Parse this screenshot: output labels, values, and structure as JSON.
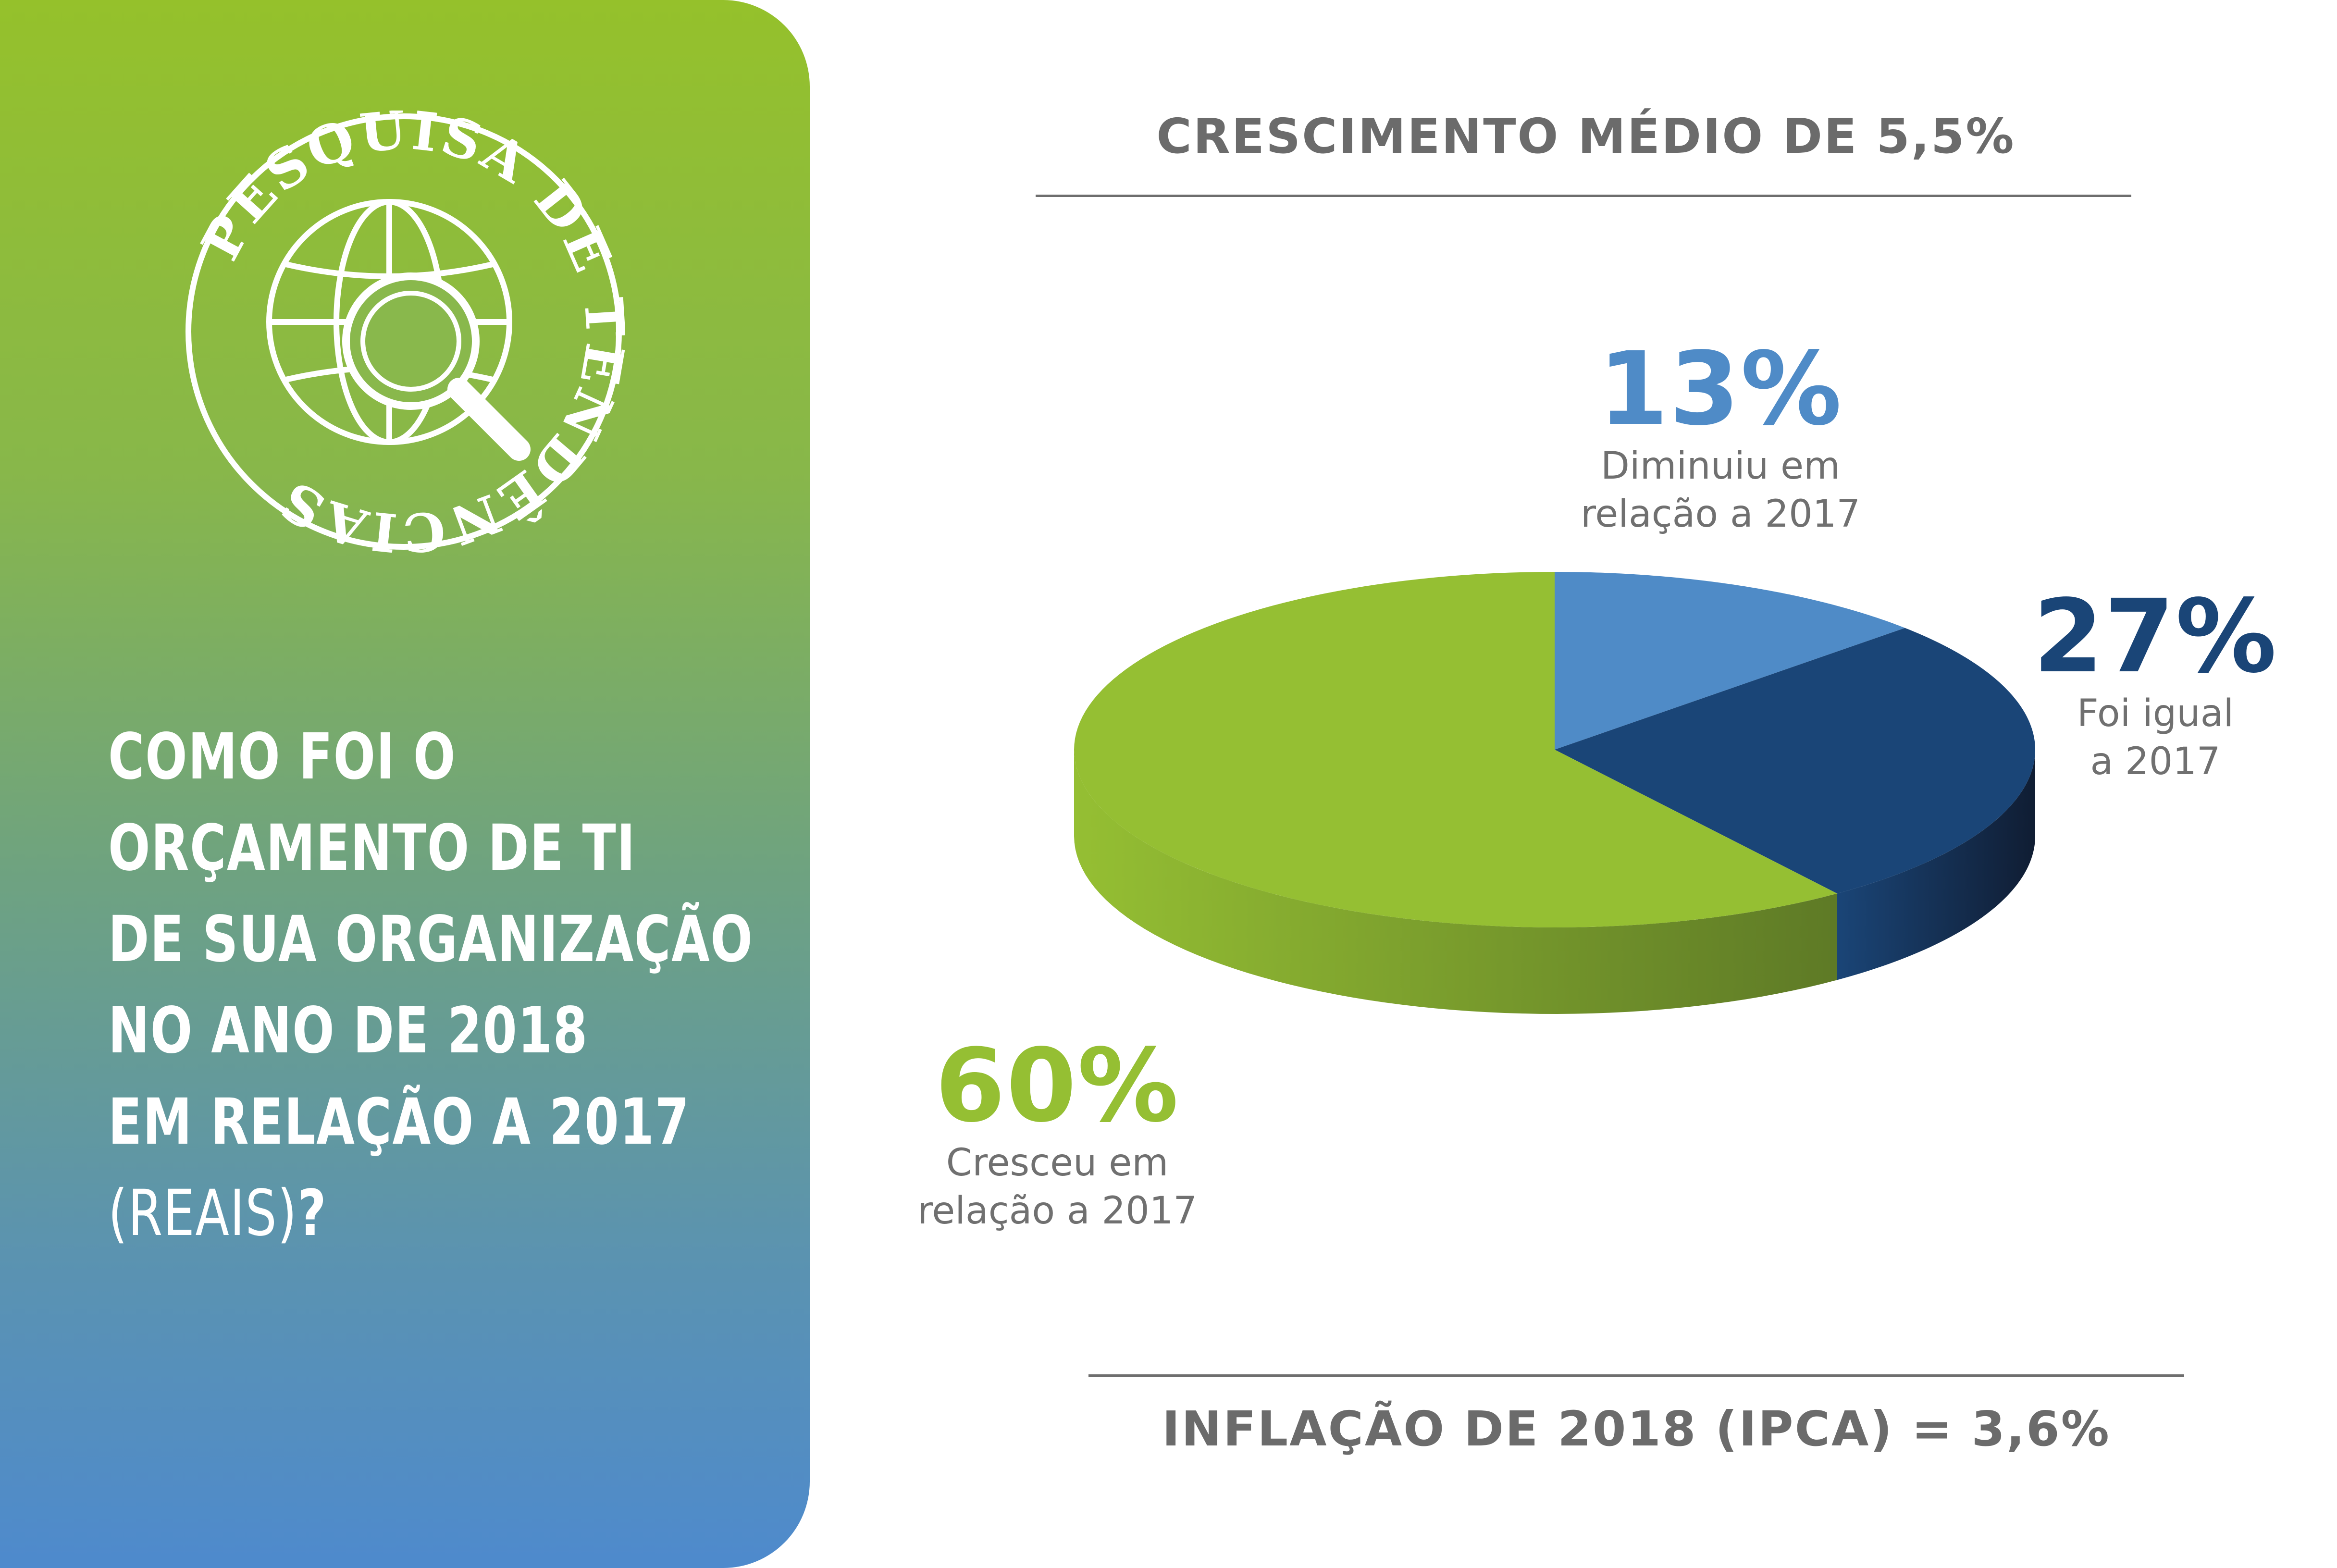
{
  "logo": {
    "ring_text": "PESQUISA DE TENDÊNCIAS"
  },
  "question": {
    "lines": [
      "COMO FOI O",
      "ORÇAMENTO DE TI",
      "DE SUA ORGANIZAÇÃO",
      "NO ANO DE 2018",
      "EM RELAÇÃO A 2017"
    ],
    "last_light": "(REAIS)",
    "last_mark": "?"
  },
  "header": {
    "title": "CRESCIMENTO MÉDIO DE 5,5%"
  },
  "footer": {
    "title": "INFLAÇÃO DE 2018 (IPCA) = 3,6%"
  },
  "colors": {
    "decreased": "#4f8bc7",
    "equal": "#1a4577",
    "increased": "#95bf33",
    "text_gray": "#6b6b6b"
  },
  "chart_data": {
    "type": "pie",
    "slices": [
      {
        "label_pct": "13%",
        "label_line1": "Diminuiu em",
        "label_line2": "relação a 2017",
        "value": 13,
        "color": "#4f8bc7",
        "side_color": "#3a6ea3"
      },
      {
        "label_pct": "27%",
        "label_line1": "Foi igual",
        "label_line2": "a 2017",
        "value": 27,
        "color": "#1a4577",
        "side_color": "#101d33"
      },
      {
        "label_pct": "60%",
        "label_line1": "Cresceu em",
        "label_line2": "relação a 2017",
        "value": 60,
        "color": "#95bf33",
        "side_color": "#5e7a26"
      }
    ]
  }
}
